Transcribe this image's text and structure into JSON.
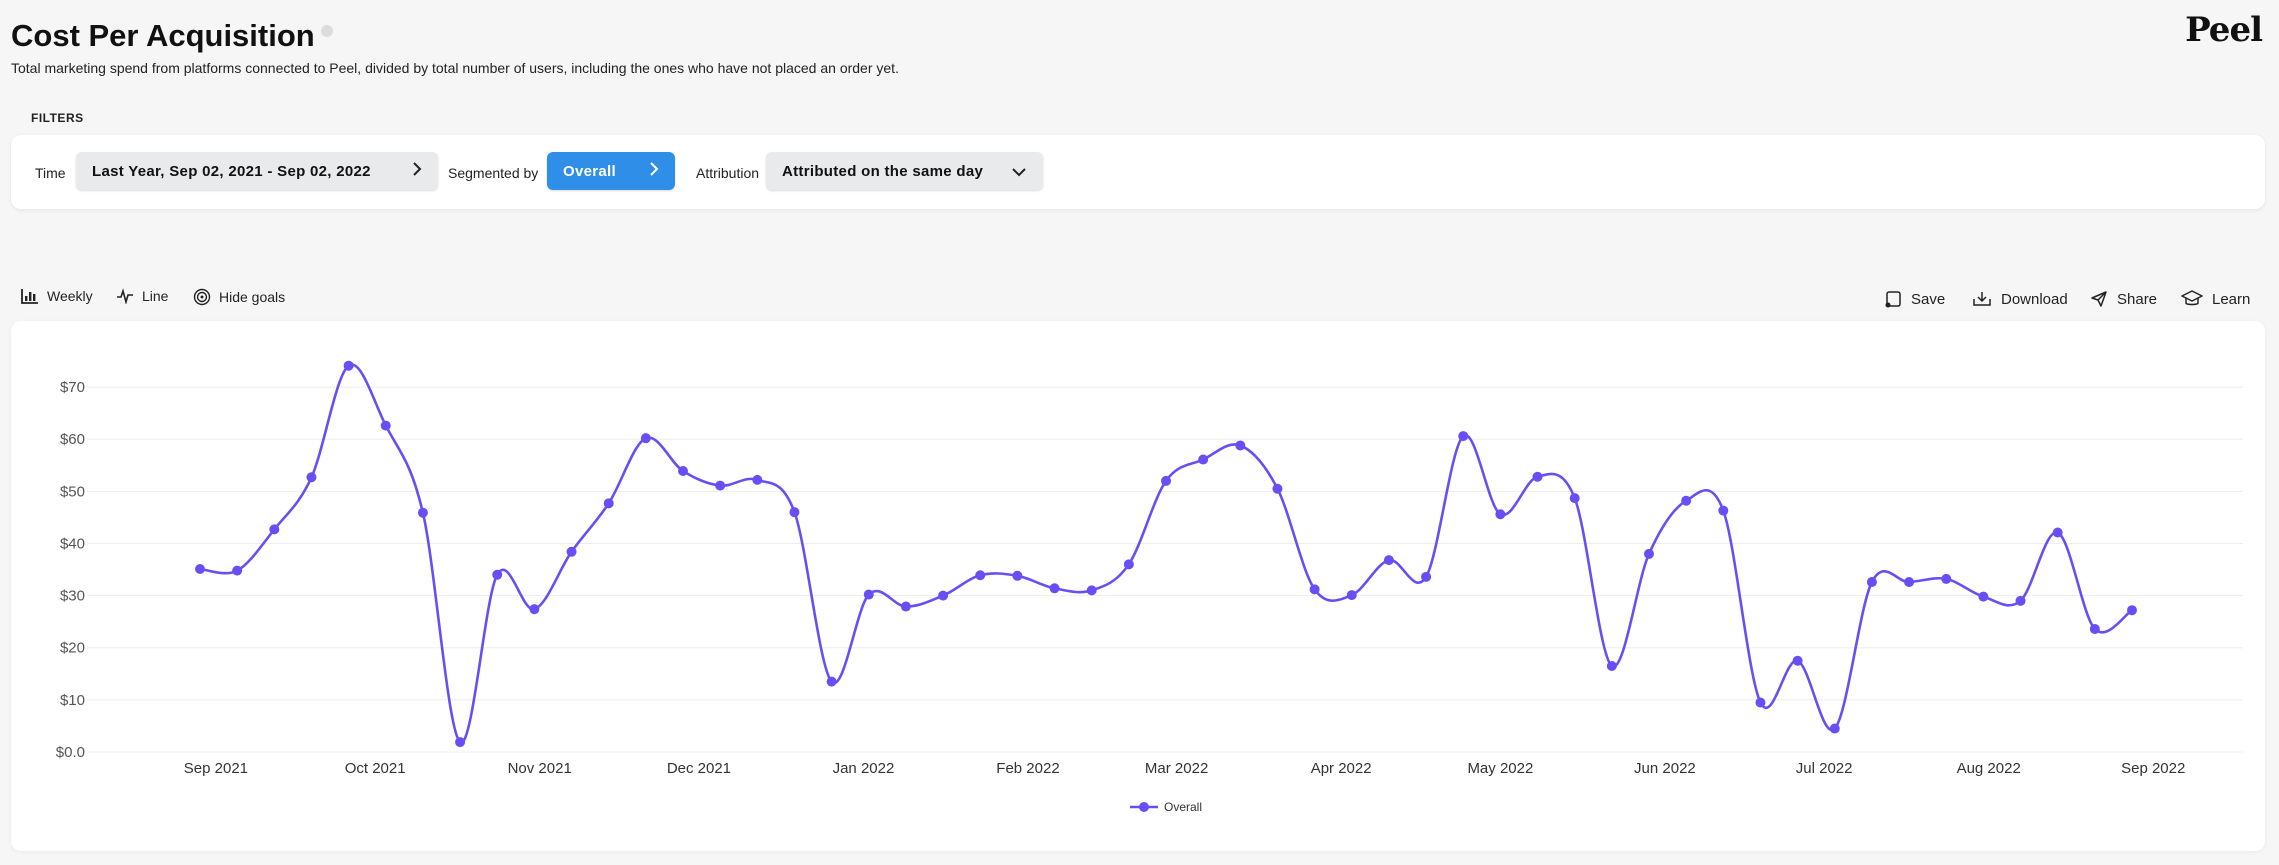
{
  "header": {
    "title": "Cost Per Acquisition",
    "subtitle": "Total marketing spend from platforms connected to Peel, divided by total number of users, including the ones who have not placed an order yet.",
    "logo": "Peel"
  },
  "filters": {
    "section_label": "FILTERS",
    "time_label": "Time",
    "time_value": "Last Year, Sep 02, 2021 - Sep 02, 2022",
    "segment_label": "Segmented by",
    "segment_value": "Overall",
    "attribution_label": "Attribution",
    "attribution_value": "Attributed on the same day"
  },
  "toolbar": {
    "weekly": "Weekly",
    "line": "Line",
    "hide_goals": "Hide goals"
  },
  "actions": {
    "save": "Save",
    "download": "Download",
    "share": "Share",
    "learn": "Learn"
  },
  "colors": {
    "series": "#6a4ef5",
    "accent_blue": "#2f8fe8",
    "grid": "#eeeeee"
  },
  "chart_data": {
    "type": "line",
    "title": "",
    "xlabel": "",
    "ylabel": "",
    "ylim": [
      0,
      75
    ],
    "grid": true,
    "legend_position": "bottom-center",
    "y_ticks": [
      {
        "value": 0,
        "label": "$0.0"
      },
      {
        "value": 10,
        "label": "$10"
      },
      {
        "value": 20,
        "label": "$20"
      },
      {
        "value": 30,
        "label": "$30"
      },
      {
        "value": 40,
        "label": "$40"
      },
      {
        "value": 50,
        "label": "$50"
      },
      {
        "value": 60,
        "label": "$60"
      },
      {
        "value": 70,
        "label": "$70"
      }
    ],
    "x_ticks": [
      {
        "date": "2021-09-01",
        "label": "Sep 2021"
      },
      {
        "date": "2021-10-01",
        "label": "Oct 2021"
      },
      {
        "date": "2021-11-01",
        "label": "Nov 2021"
      },
      {
        "date": "2021-12-01",
        "label": "Dec 2021"
      },
      {
        "date": "2022-01-01",
        "label": "Jan 2022"
      },
      {
        "date": "2022-02-01",
        "label": "Feb 2022"
      },
      {
        "date": "2022-03-01",
        "label": "Mar 2022"
      },
      {
        "date": "2022-04-01",
        "label": "Apr 2022"
      },
      {
        "date": "2022-05-01",
        "label": "May 2022"
      },
      {
        "date": "2022-06-01",
        "label": "Jun 2022"
      },
      {
        "date": "2022-07-01",
        "label": "Jul 2022"
      },
      {
        "date": "2022-08-01",
        "label": "Aug 2022"
      },
      {
        "date": "2022-09-01",
        "label": "Sep 2022"
      }
    ],
    "series": [
      {
        "name": "Overall",
        "points": [
          {
            "x": "2021-08-29",
            "y": 35.1
          },
          {
            "x": "2021-09-05",
            "y": 34.8
          },
          {
            "x": "2021-09-12",
            "y": 42.7
          },
          {
            "x": "2021-09-19",
            "y": 52.7
          },
          {
            "x": "2021-09-26",
            "y": 74.1
          },
          {
            "x": "2021-10-03",
            "y": 62.6
          },
          {
            "x": "2021-10-10",
            "y": 45.9
          },
          {
            "x": "2021-10-17",
            "y": 1.9
          },
          {
            "x": "2021-10-24",
            "y": 34.0
          },
          {
            "x": "2021-10-31",
            "y": 27.4
          },
          {
            "x": "2021-11-07",
            "y": 38.4
          },
          {
            "x": "2021-11-14",
            "y": 47.7
          },
          {
            "x": "2021-11-21",
            "y": 60.2
          },
          {
            "x": "2021-11-28",
            "y": 53.9
          },
          {
            "x": "2021-12-05",
            "y": 51.1
          },
          {
            "x": "2021-12-12",
            "y": 52.2
          },
          {
            "x": "2021-12-19",
            "y": 46.0
          },
          {
            "x": "2021-12-26",
            "y": 13.5
          },
          {
            "x": "2022-01-02",
            "y": 30.2
          },
          {
            "x": "2022-01-09",
            "y": 27.9
          },
          {
            "x": "2022-01-16",
            "y": 30.0
          },
          {
            "x": "2022-01-23",
            "y": 33.9
          },
          {
            "x": "2022-01-30",
            "y": 33.8
          },
          {
            "x": "2022-02-06",
            "y": 31.4
          },
          {
            "x": "2022-02-13",
            "y": 31.0
          },
          {
            "x": "2022-02-20",
            "y": 36.0
          },
          {
            "x": "2022-02-27",
            "y": 52.0
          },
          {
            "x": "2022-03-06",
            "y": 56.1
          },
          {
            "x": "2022-03-13",
            "y": 58.8
          },
          {
            "x": "2022-03-20",
            "y": 50.5
          },
          {
            "x": "2022-03-27",
            "y": 31.2
          },
          {
            "x": "2022-04-03",
            "y": 30.1
          },
          {
            "x": "2022-04-10",
            "y": 36.8
          },
          {
            "x": "2022-04-17",
            "y": 33.6
          },
          {
            "x": "2022-04-24",
            "y": 60.6
          },
          {
            "x": "2022-05-01",
            "y": 45.6
          },
          {
            "x": "2022-05-08",
            "y": 52.8
          },
          {
            "x": "2022-05-15",
            "y": 48.7
          },
          {
            "x": "2022-05-22",
            "y": 16.5
          },
          {
            "x": "2022-05-29",
            "y": 38.0
          },
          {
            "x": "2022-06-05",
            "y": 48.2
          },
          {
            "x": "2022-06-12",
            "y": 46.3
          },
          {
            "x": "2022-06-19",
            "y": 9.5
          },
          {
            "x": "2022-06-26",
            "y": 17.5
          },
          {
            "x": "2022-07-03",
            "y": 4.5
          },
          {
            "x": "2022-07-10",
            "y": 32.6
          },
          {
            "x": "2022-07-17",
            "y": 32.6
          },
          {
            "x": "2022-07-24",
            "y": 33.2
          },
          {
            "x": "2022-07-31",
            "y": 29.8
          },
          {
            "x": "2022-08-07",
            "y": 29.0
          },
          {
            "x": "2022-08-14",
            "y": 42.1
          },
          {
            "x": "2022-08-21",
            "y": 23.6
          },
          {
            "x": "2022-08-28",
            "y": 27.2
          }
        ]
      }
    ]
  }
}
